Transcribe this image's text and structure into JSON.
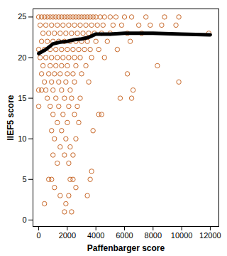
{
  "chart_data": {
    "type": "scatter",
    "x_label": "Paffenbarger score",
    "y_label": "IIEF5 score",
    "xlim": [
      -400,
      12600
    ],
    "ylim": [
      -0.8,
      26
    ],
    "xticks": [
      0,
      2000,
      4000,
      6000,
      8000,
      10000,
      12000
    ],
    "yticks": [
      0,
      5,
      10,
      15,
      20,
      25
    ],
    "grid": false,
    "series": [
      {
        "type": "scatter",
        "color": "#c8692a",
        "marker": "circle-open",
        "x": [
          0,
          200,
          400,
          600,
          800,
          1000,
          1200,
          1400,
          1600,
          1800,
          2000,
          2200,
          2400,
          2600,
          2800,
          3000,
          3200,
          3400,
          3600,
          3800,
          4000,
          4300,
          4600,
          5000,
          5400,
          6000,
          6500,
          7500,
          8800,
          9800,
          100,
          500,
          900,
          1300,
          1700,
          2100,
          2500,
          2900,
          3300,
          3700,
          4100,
          4500,
          5200,
          5800,
          7000,
          7800,
          8600,
          9600,
          300,
          700,
          1100,
          1500,
          1900,
          2300,
          2700,
          3100,
          3500,
          3900,
          4400,
          5000,
          6200,
          7200,
          11900,
          200,
          600,
          1000,
          1400,
          1800,
          2200,
          2600,
          3000,
          3400,
          4000,
          4800,
          6400,
          0,
          400,
          800,
          1200,
          1600,
          2000,
          2400,
          2800,
          3200,
          3600,
          4200,
          5500,
          100,
          500,
          900,
          1300,
          1700,
          2100,
          2500,
          2900,
          3700,
          4600,
          300,
          800,
          1200,
          1600,
          2000,
          2600,
          3300,
          8300,
          200,
          700,
          1100,
          1500,
          2000,
          2400,
          3000,
          6200,
          400,
          900,
          1400,
          1900,
          2500,
          3500,
          9800,
          0,
          200,
          500,
          1000,
          1600,
          2200,
          6600,
          600,
          1200,
          1800,
          2300,
          2900,
          5700,
          6500,
          0,
          800,
          1400,
          2100,
          2700,
          1000,
          1700,
          2500,
          4200,
          4400,
          1300,
          2000,
          2800,
          900,
          1600,
          3800,
          1100,
          1900,
          2600,
          1500,
          2200,
          1000,
          1800,
          2400,
          1300,
          2100,
          3700,
          700,
          900,
          2200,
          2400,
          3600,
          1100,
          2600,
          1500,
          2100,
          3400,
          400,
          1900,
          1800,
          2300
        ],
        "values": [
          25,
          25,
          25,
          25,
          25,
          25,
          25,
          25,
          25,
          25,
          25,
          25,
          25,
          25,
          25,
          25,
          25,
          25,
          25,
          25,
          25,
          25,
          25,
          25,
          25,
          25,
          25,
          25,
          25,
          25,
          24,
          24,
          24,
          24,
          24,
          24,
          24,
          24,
          24,
          24,
          24,
          24,
          24,
          24,
          24,
          24,
          24,
          24,
          23,
          23,
          23,
          23,
          23,
          23,
          23,
          23,
          23,
          23,
          23,
          23,
          23,
          23,
          23,
          22,
          22,
          22,
          22,
          22,
          22,
          22,
          22,
          22,
          22,
          22,
          22,
          21,
          21,
          21,
          21,
          21,
          21,
          21,
          21,
          21,
          21,
          21,
          21,
          20,
          20,
          20,
          20,
          20,
          20,
          20,
          20,
          20,
          20,
          19,
          19,
          19,
          19,
          19,
          19,
          19,
          19,
          18,
          18,
          18,
          18,
          18,
          18,
          18,
          18,
          17,
          17,
          17,
          17,
          17,
          17,
          17,
          16,
          16,
          16,
          16,
          16,
          16,
          16,
          15,
          15,
          15,
          15,
          15,
          15,
          15,
          14,
          14,
          14,
          14,
          14,
          13,
          13,
          13,
          13,
          13,
          12,
          12,
          12,
          11,
          11,
          11,
          10,
          10,
          10,
          9,
          9,
          8,
          8,
          8,
          7,
          7,
          6,
          5,
          5,
          5,
          5,
          5,
          4,
          4,
          3,
          3,
          3,
          2,
          2,
          1,
          1
        ]
      },
      {
        "type": "line",
        "color": "#000000",
        "line_style": "solid",
        "x": [
          0,
          500,
          1000,
          1500,
          2000,
          2500,
          3000,
          3500,
          4000,
          5000,
          6000,
          8000,
          10000,
          12000
        ],
        "values": [
          20.5,
          21,
          21.7,
          21.9,
          22,
          22.2,
          22.3,
          22.5,
          22.9,
          22.9,
          23,
          23,
          22.9,
          22.8
        ]
      }
    ]
  }
}
